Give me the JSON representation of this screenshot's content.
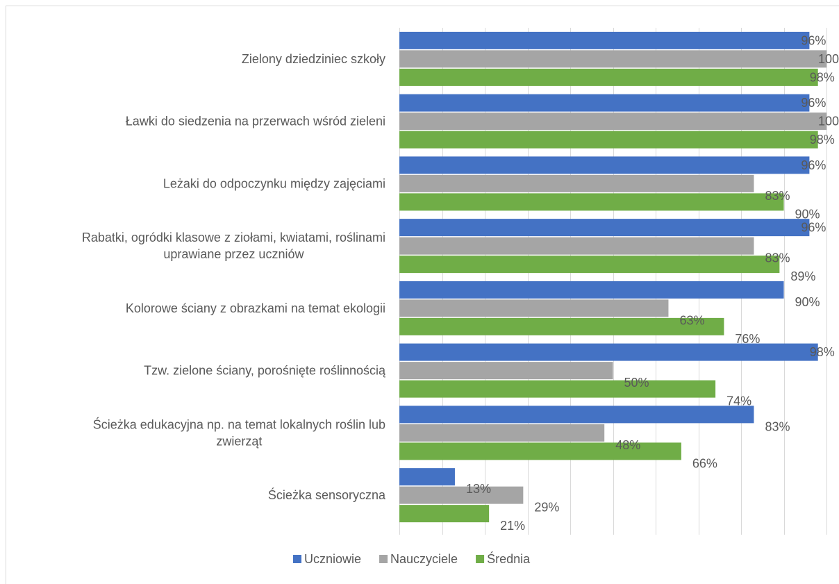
{
  "chart_data": {
    "type": "bar",
    "orientation": "horizontal",
    "categories": [
      [
        "Zielony dziedziniec szkoły"
      ],
      [
        "Ławki do siedzenia na przerwach wśród zieleni"
      ],
      [
        "Leżaki do odpoczynku między zajęciami"
      ],
      [
        "Rabatki, ogródki klasowe z ziołami, kwiatami, roślinami",
        "uprawiane przez uczniów"
      ],
      [
        "Kolorowe ściany z obrazkami na temat ekologii"
      ],
      [
        "Tzw. zielone ściany, porośnięte roślinnością"
      ],
      [
        "Ścieżka edukacyjna np. na temat lokalnych roślin lub",
        "zwierząt"
      ],
      [
        "Ścieżka sensoryczna"
      ]
    ],
    "series": [
      {
        "name": "Uczniowie",
        "color": "#4472c4",
        "values": [
          96,
          96,
          96,
          96,
          90,
          98,
          83,
          13
        ]
      },
      {
        "name": "Nauczyciele",
        "color": "#a5a5a5",
        "values": [
          100,
          100,
          83,
          83,
          63,
          50,
          48,
          29
        ]
      },
      {
        "name": "Średnia",
        "color": "#70ad47",
        "values": [
          98,
          98,
          90,
          89,
          76,
          74,
          66,
          21
        ]
      }
    ],
    "value_suffix": "%",
    "xlim": [
      0,
      100
    ],
    "grid": true,
    "legend": "bottom"
  }
}
